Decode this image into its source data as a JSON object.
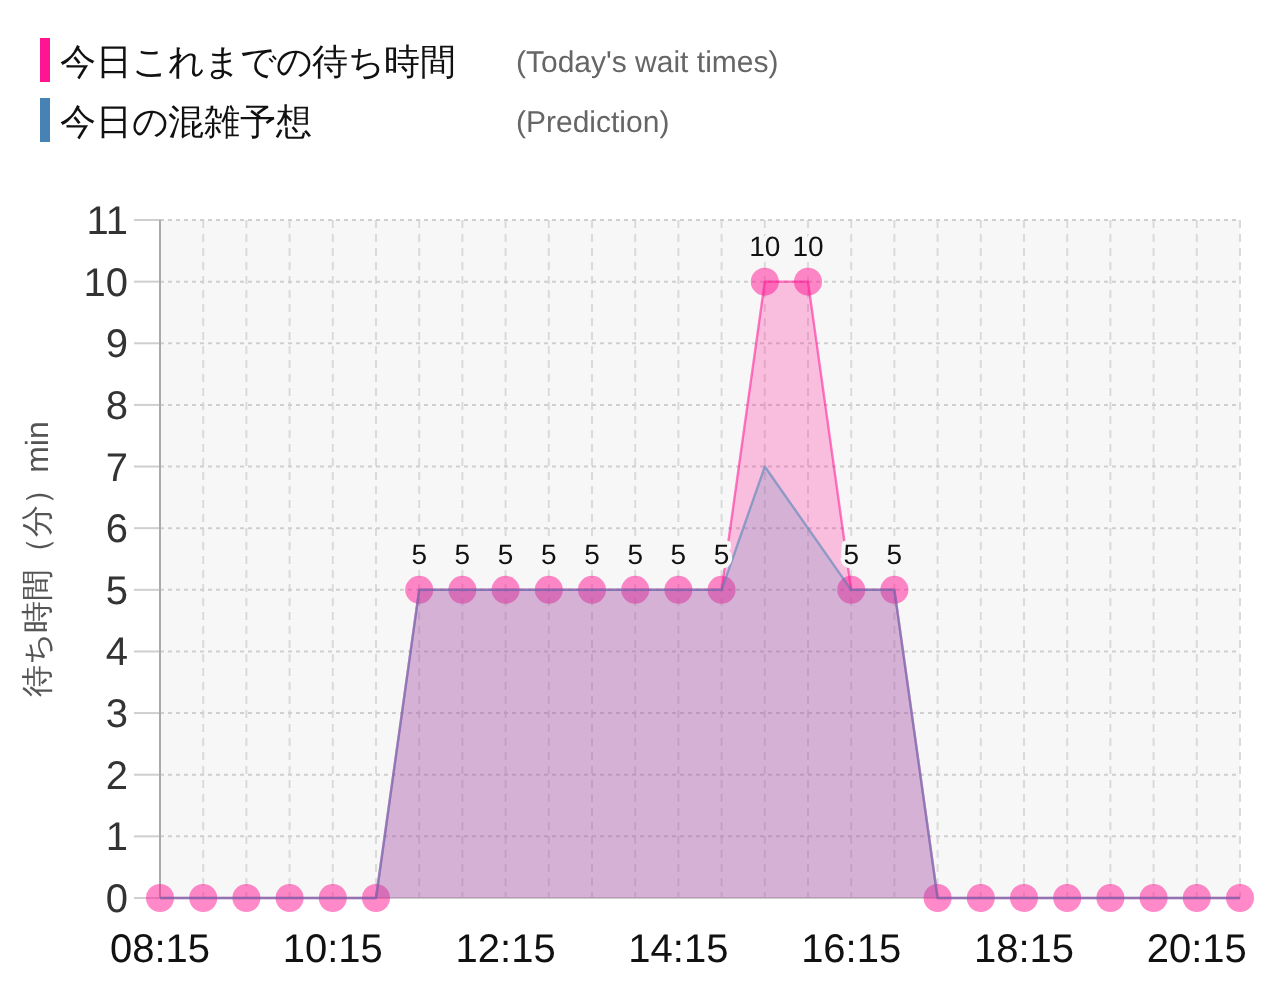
{
  "chart_data": {
    "type": "area",
    "ylabel": "待ち時間（分）min",
    "annotations": [
      "(Today's wait times)",
      "(Prediction)"
    ],
    "x": [
      8.25,
      8.75,
      9.25,
      9.75,
      10.25,
      10.75,
      11.25,
      11.75,
      12.25,
      12.75,
      13.25,
      13.75,
      14.25,
      14.75,
      15.25,
      15.75,
      16.25,
      16.75,
      17.25,
      17.75,
      18.25,
      18.75,
      19.25,
      19.75,
      20.25,
      20.75
    ],
    "series": [
      {
        "name": "今日これまでの待ち時間",
        "color": "#ff1493",
        "marker": "circle",
        "values": [
          0,
          0,
          0,
          0,
          0,
          0,
          5,
          5,
          5,
          5,
          5,
          5,
          5,
          5,
          10,
          10,
          5,
          5,
          0,
          0,
          0,
          0,
          0,
          0,
          0,
          0
        ],
        "value_labels": [
          null,
          null,
          null,
          null,
          null,
          null,
          "5",
          "5",
          "5",
          "5",
          "5",
          "5",
          "5",
          "5",
          "10",
          "10",
          "5",
          "5",
          null,
          null,
          null,
          null,
          null,
          null,
          null,
          null
        ]
      },
      {
        "name": "今日の混雑予想",
        "color": "#4682b4",
        "marker": "none",
        "values": [
          0,
          0,
          0,
          0,
          0,
          0,
          5,
          5,
          5,
          5,
          5,
          5,
          5,
          5,
          7,
          6,
          5,
          5,
          0,
          0,
          0,
          0,
          0,
          0,
          0,
          0
        ]
      }
    ],
    "xlim": [
      8.25,
      20.75
    ],
    "xticks": [
      {
        "value": 8.25,
        "label": "08:15"
      },
      {
        "value": 8.75,
        "label": null
      },
      {
        "value": 9.25,
        "label": null
      },
      {
        "value": 9.75,
        "label": null
      },
      {
        "value": 10.25,
        "label": "10:15"
      },
      {
        "value": 10.75,
        "label": null
      },
      {
        "value": 11.25,
        "label": null
      },
      {
        "value": 11.75,
        "label": null
      },
      {
        "value": 12.25,
        "label": "12:15"
      },
      {
        "value": 12.75,
        "label": null
      },
      {
        "value": 13.25,
        "label": null
      },
      {
        "value": 13.75,
        "label": null
      },
      {
        "value": 14.25,
        "label": "14:15"
      },
      {
        "value": 14.75,
        "label": null
      },
      {
        "value": 15.25,
        "label": null
      },
      {
        "value": 15.75,
        "label": null
      },
      {
        "value": 16.25,
        "label": "16:15"
      },
      {
        "value": 16.75,
        "label": null
      },
      {
        "value": 17.25,
        "label": null
      },
      {
        "value": 17.75,
        "label": null
      },
      {
        "value": 18.25,
        "label": "18:15"
      },
      {
        "value": 18.75,
        "label": null
      },
      {
        "value": 19.25,
        "label": null
      },
      {
        "value": 19.75,
        "label": null
      },
      {
        "value": 20.25,
        "label": "20:15"
      },
      {
        "value": 20.75,
        "label": null
      }
    ],
    "ylim": [
      0,
      11
    ],
    "yticks": [
      0,
      1,
      2,
      3,
      4,
      5,
      6,
      7,
      8,
      9,
      10,
      11
    ],
    "grid": true,
    "legend": "top left",
    "line_style": "solid"
  }
}
